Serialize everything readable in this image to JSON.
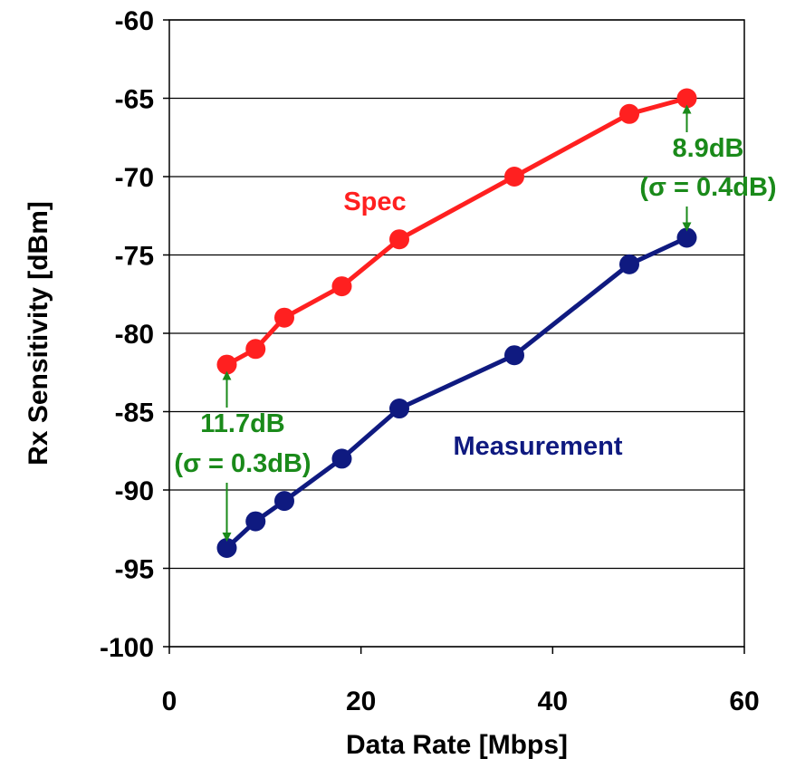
{
  "chart_data": {
    "type": "line",
    "title": "",
    "xlabel": "Data Rate [Mbps]",
    "ylabel": "Rx Sensitivity [dBm]",
    "xlim": [
      0,
      60
    ],
    "ylim": [
      -100,
      -60
    ],
    "xticks": [
      0,
      20,
      40,
      60
    ],
    "yticks": [
      -60,
      -65,
      -70,
      -75,
      -80,
      -85,
      -90,
      -95,
      -100
    ],
    "grid": "horizontal",
    "series": [
      {
        "name": "Spec",
        "color": "#ff2020",
        "x": [
          6,
          9,
          12,
          18,
          24,
          36,
          48,
          54
        ],
        "y": [
          -82,
          -81,
          -79,
          -77,
          -74,
          -70,
          -66,
          -65
        ]
      },
      {
        "name": "Measurement",
        "color": "#0f1a80",
        "x": [
          6,
          9,
          12,
          18,
          24,
          36,
          48,
          54
        ],
        "y": [
          -93.7,
          -92,
          -90.7,
          -88,
          -84.8,
          -81.4,
          -75.6,
          -73.9
        ]
      }
    ],
    "annotations": [
      {
        "line1": "11.7dB",
        "line2": "(σ = 0.3dB)",
        "x": 6,
        "y_from": -82,
        "y_to": -93.7,
        "color": "#1a8a1a"
      },
      {
        "line1": "8.9dB",
        "line2": "(σ = 0.4dB)",
        "x": 54,
        "y_from": -65,
        "y_to": -73.9,
        "color": "#1a8a1a"
      }
    ]
  }
}
